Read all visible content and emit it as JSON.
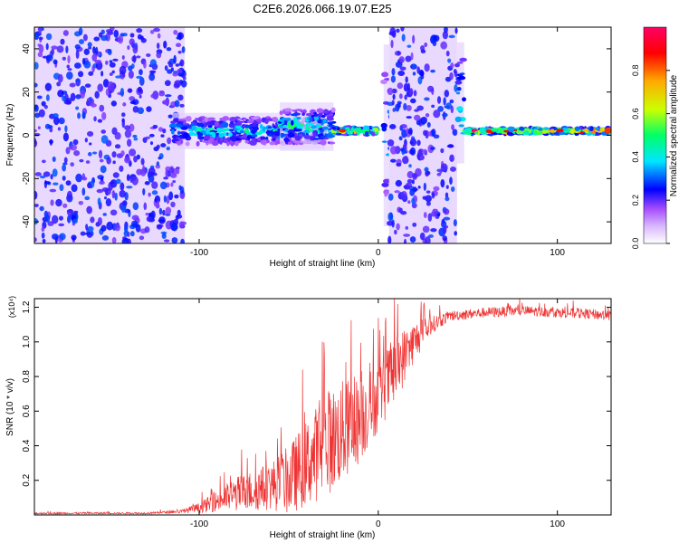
{
  "title": "C2E6.2026.066.19.07.E25",
  "chart_data": [
    {
      "type": "heatmap",
      "title": "C2E6.2026.066.19.07.E25",
      "xlabel": "Height of straight line (km)",
      "ylabel": "Frequency (Hz)",
      "xlim": [
        -192,
        130
      ],
      "ylim": [
        -50,
        50
      ],
      "x_ticks": [
        -100,
        0,
        100
      ],
      "x_tick_labels": [
        "-100",
        "0",
        "100"
      ],
      "y_ticks": [
        -40,
        -20,
        0,
        20,
        40
      ],
      "y_tick_labels": [
        "-40",
        "-20",
        "0",
        "20",
        "40"
      ],
      "colorbar": {
        "label": "Normalized spectral amplitude",
        "range": [
          0,
          1
        ],
        "ticks": [
          0,
          0.2,
          0.4,
          0.6,
          0.8
        ],
        "tick_labels": [
          "0.0",
          "0.2",
          "0.4",
          "0.6",
          "0.8"
        ],
        "colors": [
          "#ffffff",
          "#a64dff",
          "#0000ff",
          "#00e6ff",
          "#00ff66",
          "#ccff00",
          "#ffaa00",
          "#ff0000",
          "#ff0066"
        ]
      },
      "regions": [
        {
          "name": "noise",
          "x_range": [
            -192,
            -108
          ],
          "freq_range": [
            -50,
            50
          ],
          "amplitude": 0.15
        },
        {
          "name": "signal-scatter",
          "x_range": [
            -115,
            -30
          ],
          "freq_center": 2,
          "freq_spread": 6,
          "amplitude": 0.45
        },
        {
          "name": "signal-scatter-2",
          "x_range": [
            -55,
            -25
          ],
          "freq_center": 4,
          "freq_spread": 8,
          "amplitude": 0.5
        },
        {
          "name": "carrier-1",
          "x_range": [
            -25,
            0
          ],
          "freq_center": 2,
          "freq_spread": 1.5,
          "amplitude": 0.9
        },
        {
          "name": "spike-1",
          "x_range": [
            3,
            7
          ],
          "freq_center": 0,
          "freq_spread": 30,
          "amplitude": 0.4
        },
        {
          "name": "noise-2",
          "x_range": [
            6,
            44
          ],
          "freq_range": [
            -50,
            50
          ],
          "amplitude": 0.15
        },
        {
          "name": "spike-2",
          "x_range": [
            44,
            48
          ],
          "freq_center": 15,
          "freq_spread": 20,
          "amplitude": 0.5
        },
        {
          "name": "carrier-2",
          "x_range": [
            48,
            130
          ],
          "freq_center": 2,
          "freq_spread": 1.2,
          "amplitude": 0.95
        }
      ]
    },
    {
      "type": "line",
      "xlabel": "Height of straight line (km)",
      "ylabel": "SNR (10 * v/v)",
      "y_multiplier": "(x10⁴)",
      "xlim": [
        -192,
        130
      ],
      "ylim": [
        0,
        1.25
      ],
      "x_ticks": [
        -100,
        0,
        100
      ],
      "x_tick_labels": [
        "-100",
        "0",
        "100"
      ],
      "y_ticks": [
        0.2,
        0.4,
        0.6,
        0.8,
        1.0,
        1.2
      ],
      "y_tick_labels": [
        "0.2",
        "0.4",
        "0.6",
        "0.8",
        "1.0",
        "1.2"
      ],
      "series": [
        {
          "name": "SNR",
          "color": "#ee3333",
          "x": [
            -192,
            -130,
            -110,
            -100,
            -90,
            -80,
            -70,
            -60,
            -50,
            -40,
            -30,
            -20,
            -10,
            0,
            10,
            20,
            30,
            40,
            50,
            60,
            80,
            100,
            120,
            130
          ],
          "y": [
            0.01,
            0.01,
            0.02,
            0.04,
            0.08,
            0.12,
            0.14,
            0.17,
            0.2,
            0.3,
            0.4,
            0.48,
            0.55,
            0.68,
            0.85,
            1.0,
            1.1,
            1.15,
            1.16,
            1.17,
            1.18,
            1.17,
            1.16,
            1.15
          ],
          "noise": [
            0.005,
            0.005,
            0.01,
            0.03,
            0.06,
            0.1,
            0.12,
            0.14,
            0.2,
            0.25,
            0.3,
            0.3,
            0.25,
            0.2,
            0.2,
            0.12,
            0.05,
            0.03,
            0.03,
            0.03,
            0.03,
            0.03,
            0.03,
            0.03
          ]
        }
      ]
    }
  ]
}
